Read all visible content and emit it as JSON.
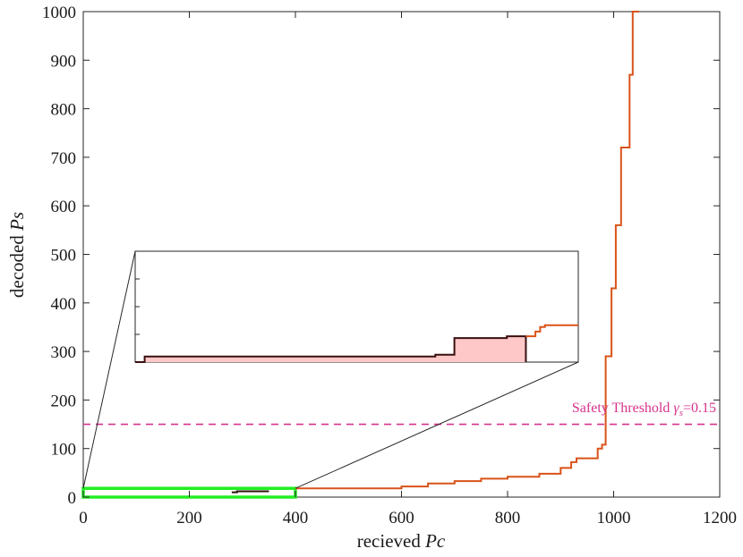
{
  "chart_data": {
    "type": "line",
    "xlabel_prefix": "recieved ",
    "xlabel_var": "Pc",
    "ylabel_prefix": "decoded ",
    "ylabel_var": "Ps",
    "xlim": [
      0,
      1200
    ],
    "ylim": [
      0,
      1000
    ],
    "x_ticks": [
      0,
      200,
      400,
      600,
      800,
      1000,
      1200
    ],
    "y_ticks": [
      0,
      100,
      200,
      300,
      400,
      500,
      600,
      700,
      800,
      900,
      1000
    ],
    "grid": false,
    "series": [
      {
        "color": "#d95319",
        "x": [
          400,
          580,
          600,
          650,
          700,
          750,
          800,
          860,
          900,
          920,
          930,
          960,
          970,
          978,
          985,
          996,
          1004,
          1014,
          1022,
          1030,
          1036,
          1042,
          1048
        ],
        "y": [
          18,
          18,
          22,
          28,
          33,
          38,
          42,
          48,
          60,
          72,
          80,
          80,
          100,
          108,
          290,
          430,
          560,
          720,
          720,
          870,
          1000,
          1000,
          1000
        ]
      }
    ],
    "threshold": {
      "y": 150,
      "color": "#d6338c",
      "label_prefix": "Safety Threshold ",
      "label_var": "γ",
      "label_sub": "s",
      "label_suffix": "=0.15"
    },
    "zoom_box": {
      "x_range": [
        0,
        400
      ],
      "y_range": [
        0,
        18
      ],
      "color": "#22ee22",
      "step_x": [
        280,
        290,
        350
      ],
      "step_y": [
        10,
        12,
        12
      ]
    },
    "inset": {
      "fill_color": "#ffc8c8",
      "line_color": "#3a0f0f",
      "tail_color": "#d95319",
      "x": [
        0,
        10,
        310,
        315,
        330,
        335,
        385,
        390,
        410,
        420,
        425,
        430,
        465
      ],
      "y": [
        0,
        6,
        6,
        8,
        8,
        26,
        26,
        28,
        28,
        33,
        38,
        40,
        40
      ],
      "fill_end_x": 410,
      "tail_start_x": 410
    }
  }
}
